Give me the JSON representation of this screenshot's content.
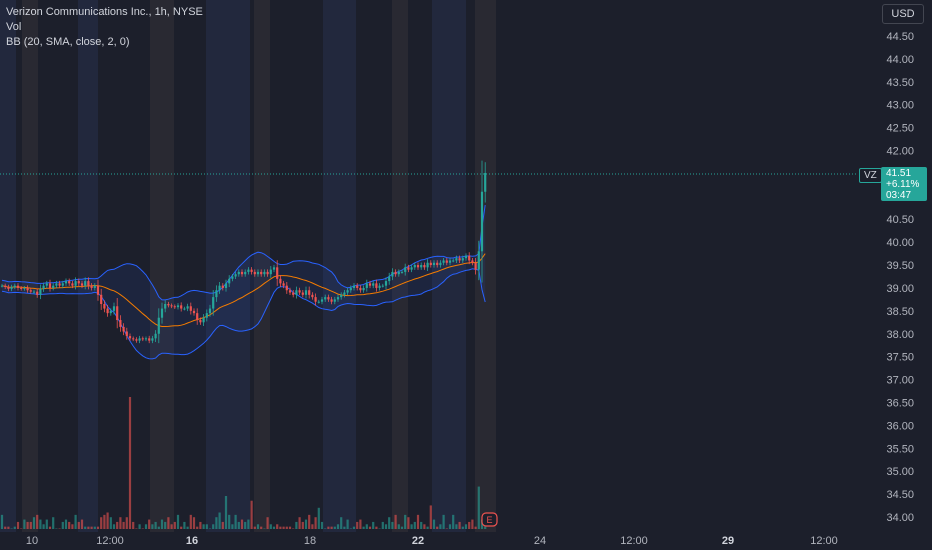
{
  "legend": {
    "title": "Verizon Communications Inc., 1h, NYSE",
    "vol": "Vol",
    "bb": "BB (20, SMA, close, 2, 0)"
  },
  "currency": "USD",
  "last_price": {
    "symbol": "VZ",
    "price": "41.51",
    "change": "+6.11%",
    "countdown": "03:47"
  },
  "colors": {
    "up": "#26a69a",
    "down": "#ef5350",
    "band": "#2962ff",
    "basis": "#f57c00",
    "background": "#1c1f2b"
  },
  "earnings_marker": "E",
  "chart_data": {
    "type": "candlestick",
    "title": "Verizon Communications Inc., 1h, NYSE",
    "indicators": [
      "Vol",
      "BB (20, SMA, close, 2, 0)"
    ],
    "ylim": [
      33.8,
      44.9
    ],
    "y_ticks": [
      34.0,
      34.5,
      35.0,
      35.5,
      36.0,
      36.5,
      37.0,
      37.5,
      38.0,
      38.5,
      39.0,
      39.5,
      40.0,
      40.5,
      41.0,
      41.5,
      42.0,
      42.5,
      43.0,
      43.5,
      44.0,
      44.5
    ],
    "x_ticks": [
      {
        "label": "10",
        "bold": false
      },
      {
        "label": "12:00",
        "bold": false
      },
      {
        "label": "16",
        "bold": true
      },
      {
        "label": "18",
        "bold": false
      },
      {
        "label": "22",
        "bold": true
      },
      {
        "label": "24",
        "bold": false
      },
      {
        "label": "12:00",
        "bold": false
      },
      {
        "label": "29",
        "bold": true
      },
      {
        "label": "12:00",
        "bold": false
      }
    ],
    "last_close": 41.51,
    "session_shading": true,
    "closes": [
      39.05,
      39.02,
      38.98,
      39.02,
      39.05,
      39.0,
      38.98,
      39.0,
      38.95,
      38.92,
      38.92,
      38.85,
      38.98,
      39.05,
      39.1,
      39.0,
      39.05,
      39.1,
      39.05,
      39.1,
      39.15,
      39.1,
      39.05,
      39.15,
      39.1,
      39.05,
      39.15,
      39.05,
      39.0,
      39.05,
      38.85,
      38.65,
      38.55,
      38.45,
      38.5,
      38.6,
      38.3,
      38.15,
      38.05,
      37.95,
      37.9,
      37.88,
      37.85,
      37.9,
      37.88,
      37.9,
      37.85,
      37.9,
      38.0,
      38.35,
      38.55,
      38.65,
      38.62,
      38.6,
      38.58,
      38.62,
      38.55,
      38.55,
      38.6,
      38.5,
      38.45,
      38.3,
      38.25,
      38.35,
      38.45,
      38.55,
      38.8,
      38.95,
      39.05,
      39.0,
      39.1,
      39.2,
      39.25,
      39.3,
      39.35,
      39.3,
      39.35,
      39.4,
      39.35,
      39.3,
      39.35,
      39.3,
      39.35,
      39.3,
      39.4,
      39.45,
      39.2,
      39.1,
      39.05,
      38.95,
      38.9,
      38.85,
      38.95,
      38.9,
      38.85,
      38.95,
      38.85,
      38.8,
      38.7,
      38.7,
      38.75,
      38.8,
      38.75,
      38.7,
      38.75,
      38.8,
      38.85,
      38.9,
      38.95,
      39.0,
      39.05,
      39.0,
      38.95,
      39.0,
      39.1,
      39.05,
      39.1,
      39.0,
      39.05,
      39.05,
      39.15,
      39.25,
      39.35,
      39.3,
      39.35,
      39.35,
      39.45,
      39.4,
      39.45,
      39.5,
      39.45,
      39.5,
      39.45,
      39.55,
      39.5,
      39.55,
      39.5,
      39.55,
      39.6,
      39.55,
      39.6,
      39.6,
      39.65,
      39.6,
      39.65,
      39.7,
      39.6,
      39.55,
      39.4,
      39.8,
      41.1,
      41.51
    ],
    "volumes": [
      6,
      1,
      1,
      0,
      1,
      3,
      0,
      4,
      3,
      3,
      5,
      6,
      4,
      2,
      4,
      1,
      5,
      0,
      0,
      3,
      4,
      3,
      2,
      6,
      3,
      4,
      1,
      1,
      1,
      1,
      1,
      5,
      6,
      7,
      5,
      2,
      3,
      5,
      3,
      5,
      56,
      3,
      0,
      2,
      0,
      2,
      4,
      2,
      3,
      1,
      4,
      3,
      5,
      2,
      3,
      6,
      1,
      3,
      1,
      6,
      5,
      1,
      3,
      2,
      2,
      0,
      2,
      5,
      7,
      3,
      14,
      6,
      2,
      6,
      3,
      4,
      3,
      4,
      12,
      1,
      2,
      1,
      0,
      5,
      2,
      1,
      2,
      1,
      1,
      1,
      1,
      0,
      3,
      5,
      3,
      4,
      6,
      2,
      5,
      9,
      3,
      0,
      1,
      1,
      1,
      2,
      5,
      1,
      4,
      0,
      1,
      3,
      4,
      1,
      2,
      1,
      3,
      1,
      0,
      3,
      2,
      5,
      3,
      6,
      2,
      1,
      6,
      5,
      2,
      3,
      6,
      3,
      2,
      1,
      10,
      4,
      1,
      2,
      6,
      0,
      2,
      6,
      2,
      3,
      1,
      2,
      3,
      4,
      1,
      18,
      4,
      1
    ]
  }
}
